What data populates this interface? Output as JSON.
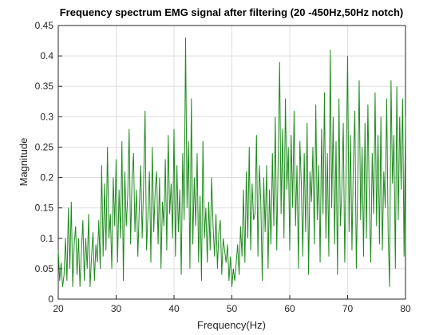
{
  "chart_data": {
    "type": "line",
    "title": "Frequency spectrum EMG signal after filtering (20 -450Hz,50Hz notch)",
    "x_label": "Frequency(Hz)",
    "y_label": "Magnitude",
    "xlim": [
      20,
      80
    ],
    "ylim": [
      0,
      0.45
    ],
    "xticks": [
      20,
      30,
      40,
      50,
      60,
      70,
      80
    ],
    "yticks": [
      0,
      0.05,
      0.1,
      0.15,
      0.2,
      0.25,
      0.3,
      0.35,
      0.4,
      0.45
    ],
    "grid": true,
    "color": "#1f8a1f",
    "x": [
      20,
      20.25,
      20.5,
      20.75,
      21,
      21.25,
      21.5,
      21.75,
      22,
      22.25,
      22.5,
      22.75,
      23,
      23.25,
      23.5,
      23.75,
      24,
      24.25,
      24.5,
      24.75,
      25,
      25.25,
      25.5,
      25.75,
      26,
      26.25,
      26.5,
      26.75,
      27,
      27.25,
      27.5,
      27.75,
      28,
      28.25,
      28.5,
      28.75,
      29,
      29.25,
      29.5,
      29.75,
      30,
      30.25,
      30.5,
      30.75,
      31,
      31.25,
      31.5,
      31.75,
      32,
      32.25,
      32.5,
      32.75,
      33,
      33.25,
      33.5,
      33.75,
      34,
      34.25,
      34.5,
      34.75,
      35,
      35.25,
      35.5,
      35.75,
      36,
      36.25,
      36.5,
      36.75,
      37,
      37.25,
      37.5,
      37.75,
      38,
      38.25,
      38.5,
      38.75,
      39,
      39.25,
      39.5,
      39.75,
      40,
      40.25,
      40.5,
      40.75,
      41,
      41.25,
      41.5,
      41.75,
      42,
      42.25,
      42.5,
      42.75,
      43,
      43.25,
      43.5,
      43.75,
      44,
      44.25,
      44.5,
      44.75,
      45,
      45.25,
      45.5,
      45.75,
      46,
      46.25,
      46.5,
      46.75,
      47,
      47.25,
      47.5,
      47.75,
      48,
      48.25,
      48.5,
      48.75,
      49,
      49.25,
      49.5,
      49.75,
      50,
      50.25,
      50.5,
      50.75,
      51,
      51.25,
      51.5,
      51.75,
      52,
      52.25,
      52.5,
      52.75,
      53,
      53.25,
      53.5,
      53.75,
      54,
      54.25,
      54.5,
      54.75,
      55,
      55.25,
      55.5,
      55.75,
      56,
      56.25,
      56.5,
      56.75,
      57,
      57.25,
      57.5,
      57.75,
      58,
      58.25,
      58.5,
      58.75,
      59,
      59.25,
      59.5,
      59.75,
      60,
      60.25,
      60.5,
      60.75,
      61,
      61.25,
      61.5,
      61.75,
      62,
      62.25,
      62.5,
      62.75,
      63,
      63.25,
      63.5,
      63.75,
      64,
      64.25,
      64.5,
      64.75,
      65,
      65.25,
      65.5,
      65.75,
      66,
      66.25,
      66.5,
      66.75,
      67,
      67.25,
      67.5,
      67.75,
      68,
      68.25,
      68.5,
      68.75,
      69,
      69.25,
      69.5,
      69.75,
      70,
      70.25,
      70.5,
      70.75,
      71,
      71.25,
      71.5,
      71.75,
      72,
      72.25,
      72.5,
      72.75,
      73,
      73.25,
      73.5,
      73.75,
      74,
      74.25,
      74.5,
      74.75,
      75,
      75.25,
      75.5,
      75.75,
      76,
      76.25,
      76.5,
      76.75,
      77,
      77.25,
      77.5,
      77.75,
      78,
      78.25,
      78.5,
      78.75,
      79,
      79.25,
      79.5,
      79.75,
      80
    ],
    "values": [
      0.08,
      0.03,
      0.06,
      0.02,
      0.04,
      0.1,
      0.03,
      0.15,
      0.05,
      0.16,
      0.02,
      0.09,
      0.12,
      0.04,
      0.1,
      0.02,
      0.08,
      0.13,
      0.03,
      0.1,
      0.05,
      0.14,
      0.02,
      0.07,
      0.11,
      0.03,
      0.09,
      0.06,
      0.13,
      0.05,
      0.22,
      0.07,
      0.19,
      0.08,
      0.25,
      0.1,
      0.14,
      0.05,
      0.2,
      0.12,
      0.23,
      0.06,
      0.18,
      0.1,
      0.26,
      0.03,
      0.21,
      0.12,
      0.17,
      0.28,
      0.09,
      0.2,
      0.24,
      0.11,
      0.18,
      0.07,
      0.15,
      0.22,
      0.1,
      0.19,
      0.31,
      0.08,
      0.14,
      0.21,
      0.06,
      0.25,
      0.11,
      0.18,
      0.21,
      0.09,
      0.2,
      0.05,
      0.16,
      0.12,
      0.23,
      0.08,
      0.27,
      0.14,
      0.19,
      0.1,
      0.28,
      0.07,
      0.22,
      0.11,
      0.18,
      0.04,
      0.24,
      0.13,
      0.43,
      0.15,
      0.26,
      0.05,
      0.33,
      0.09,
      0.2,
      0.12,
      0.24,
      0.06,
      0.17,
      0.03,
      0.26,
      0.1,
      0.15,
      0.06,
      0.16,
      0.08,
      0.2,
      0.12,
      0.07,
      0.14,
      0.05,
      0.11,
      0.13,
      0.04,
      0.1,
      0.08,
      0.06,
      0.09,
      0.03,
      0.07,
      0.02,
      0.05,
      0.03,
      0.06,
      0.09,
      0.04,
      0.12,
      0.07,
      0.18,
      0.06,
      0.21,
      0.1,
      0.25,
      0.08,
      0.19,
      0.13,
      0.14,
      0.27,
      0.07,
      0.22,
      0.16,
      0.03,
      0.2,
      0.11,
      0.22,
      0.05,
      0.18,
      0.09,
      0.24,
      0.12,
      0.3,
      0.08,
      0.23,
      0.39,
      0.14,
      0.28,
      0.1,
      0.33,
      0.18,
      0.25,
      0.08,
      0.27,
      0.15,
      0.31,
      0.12,
      0.22,
      0.05,
      0.26,
      0.19,
      0.07,
      0.24,
      0.11,
      0.29,
      0.04,
      0.21,
      0.16,
      0.25,
      0.09,
      0.32,
      0.13,
      0.22,
      0.06,
      0.28,
      0.14,
      0.34,
      0.1,
      0.24,
      0.07,
      0.41,
      0.15,
      0.3,
      0.09,
      0.26,
      0.04,
      0.33,
      0.12,
      0.18,
      0.29,
      0.06,
      0.22,
      0.4,
      0.11,
      0.27,
      0.08,
      0.23,
      0.31,
      0.05,
      0.19,
      0.36,
      0.13,
      0.25,
      0.07,
      0.29,
      0.1,
      0.32,
      0.16,
      0.06,
      0.24,
      0.14,
      0.34,
      0.12,
      0.27,
      0.09,
      0.3,
      0.08,
      0.21,
      0.15,
      0.33,
      0.11,
      0.02,
      0.36,
      0.19,
      0.27,
      0.05,
      0.35,
      0.13,
      0.3,
      0.18,
      0.33,
      0.07,
      0.3
    ]
  }
}
